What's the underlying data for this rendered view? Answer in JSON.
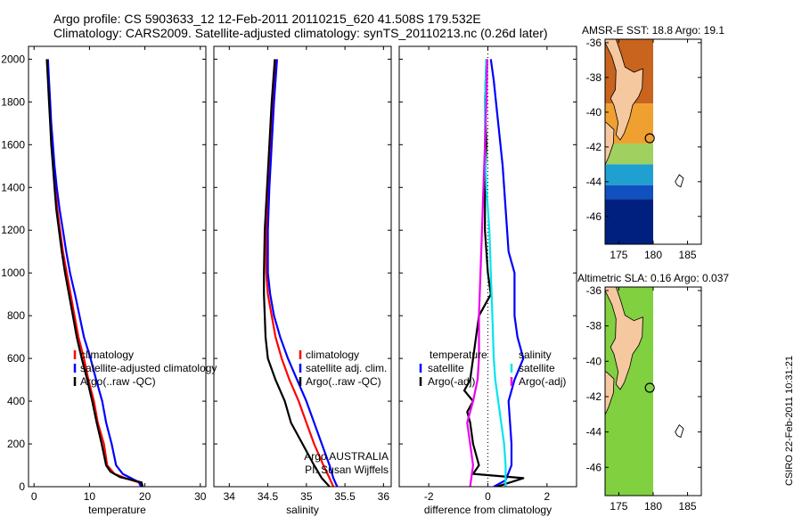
{
  "titles": {
    "line1": "Argo profile: CS 5903633_12 12-Feb-2011 20110215_620 41.508S 179.532E",
    "line2": "Climatology: CARS2009. Satellite-adjusted climatology: synTS_20110213.nc (0.26d later)",
    "sst_map": "AMSR-E SST: 18.8 Argo: 19.1",
    "sla_map": "Altimetric SLA: 0.16 Argo: 0.037"
  },
  "side_stamp": "CSIRO 22-Feb-2011 10:31:21",
  "annotation": {
    "line1": "Argo AUSTRALIA",
    "line2": "PI: Susan Wijffels"
  },
  "colors": {
    "climatology": "#ff0000",
    "satellite": "#0000ff",
    "argo": "#000000",
    "salinity_satellite": "#00e5ee",
    "salinity_argo": "#ee00ee",
    "land": "#f5c8a0"
  },
  "chart_data": [
    {
      "type": "line",
      "id": "temperature-profile",
      "xlabel": "temperature",
      "ylabel": "",
      "xlim": [
        -1,
        31
      ],
      "ylim": [
        2060,
        0
      ],
      "xticks": [
        0,
        10,
        20,
        30
      ],
      "yticks": [
        0,
        200,
        400,
        600,
        800,
        1000,
        1200,
        1400,
        1600,
        1800,
        2000
      ],
      "legend": {
        "placement": "lower-left",
        "entries": [
          "climatology",
          "satellite-adjusted climatology",
          "Argo(..raw -QC)"
        ]
      },
      "series": [
        {
          "name": "climatology",
          "color": "#ff0000",
          "points": [
            [
              19.3,
              0
            ],
            [
              18.9,
              20
            ],
            [
              16.5,
              40
            ],
            [
              14.5,
              60
            ],
            [
              13.2,
              100
            ],
            [
              12.6,
              200
            ],
            [
              11.5,
              300
            ],
            [
              10.8,
              400
            ],
            [
              9.8,
              500
            ],
            [
              9.0,
              600
            ],
            [
              8.0,
              700
            ],
            [
              7.3,
              800
            ],
            [
              6.6,
              900
            ],
            [
              5.9,
              1000
            ],
            [
              5.2,
              1100
            ],
            [
              4.7,
              1200
            ],
            [
              4.2,
              1300
            ],
            [
              3.8,
              1400
            ],
            [
              3.5,
              1500
            ],
            [
              3.2,
              1600
            ],
            [
              3.0,
              1700
            ],
            [
              2.8,
              1800
            ],
            [
              2.6,
              1900
            ],
            [
              2.4,
              2000
            ]
          ]
        },
        {
          "name": "satellite-adjusted climatology",
          "color": "#0000ff",
          "points": [
            [
              19.3,
              0
            ],
            [
              19.0,
              20
            ],
            [
              17.5,
              40
            ],
            [
              16.0,
              60
            ],
            [
              14.8,
              100
            ],
            [
              14.0,
              200
            ],
            [
              13.0,
              300
            ],
            [
              12.3,
              400
            ],
            [
              11.2,
              500
            ],
            [
              10.2,
              600
            ],
            [
              9.0,
              700
            ],
            [
              8.2,
              800
            ],
            [
              7.4,
              900
            ],
            [
              6.5,
              1000
            ],
            [
              5.8,
              1100
            ],
            [
              5.2,
              1200
            ],
            [
              4.6,
              1300
            ],
            [
              4.1,
              1400
            ],
            [
              3.7,
              1500
            ],
            [
              3.4,
              1600
            ],
            [
              3.1,
              1700
            ],
            [
              2.9,
              1800
            ],
            [
              2.7,
              1900
            ],
            [
              2.5,
              2000
            ]
          ]
        },
        {
          "name": "Argo(..raw -QC)",
          "color": "#000000",
          "points": [
            [
              19.6,
              0
            ],
            [
              19.4,
              20
            ],
            [
              15.5,
              45
            ],
            [
              13.8,
              70
            ],
            [
              13.0,
              100
            ],
            [
              12.2,
              200
            ],
            [
              11.3,
              300
            ],
            [
              10.5,
              400
            ],
            [
              9.6,
              500
            ],
            [
              8.6,
              600
            ],
            [
              7.7,
              700
            ],
            [
              7.0,
              800
            ],
            [
              6.3,
              900
            ],
            [
              5.6,
              1000
            ],
            [
              5.0,
              1100
            ],
            [
              4.5,
              1200
            ],
            [
              4.0,
              1300
            ],
            [
              3.7,
              1400
            ],
            [
              3.4,
              1500
            ],
            [
              3.1,
              1600
            ],
            [
              2.9,
              1700
            ],
            [
              2.7,
              1800
            ],
            [
              2.5,
              1900
            ],
            [
              2.3,
              2000
            ]
          ]
        }
      ]
    },
    {
      "type": "line",
      "id": "salinity-profile",
      "xlabel": "salinity",
      "ylabel": "",
      "xlim": [
        33.8,
        36.1
      ],
      "ylim": [
        2060,
        0
      ],
      "xticks": [
        34,
        34.5,
        35,
        35.5,
        36
      ],
      "yticks": [
        0,
        200,
        400,
        600,
        800,
        1000,
        1200,
        1400,
        1600,
        1800,
        2000
      ],
      "legend": {
        "placement": "lower-right",
        "entries": [
          "climatology",
          "satellite adj. clim.",
          "Argo(..raw -QC)"
        ]
      },
      "series": [
        {
          "name": "climatology",
          "color": "#ff0000",
          "points": [
            [
              35.35,
              0
            ],
            [
              35.3,
              40
            ],
            [
              35.22,
              100
            ],
            [
              35.1,
              200
            ],
            [
              35.0,
              300
            ],
            [
              34.9,
              400
            ],
            [
              34.78,
              500
            ],
            [
              34.68,
              600
            ],
            [
              34.6,
              700
            ],
            [
              34.55,
              800
            ],
            [
              34.5,
              900
            ],
            [
              34.48,
              1000
            ],
            [
              34.48,
              1200
            ],
            [
              34.5,
              1400
            ],
            [
              34.53,
              1600
            ],
            [
              34.56,
              1800
            ],
            [
              34.6,
              2000
            ]
          ]
        },
        {
          "name": "satellite adj. clim.",
          "color": "#0000ff",
          "points": [
            [
              35.4,
              0
            ],
            [
              35.35,
              40
            ],
            [
              35.3,
              100
            ],
            [
              35.2,
              200
            ],
            [
              35.1,
              300
            ],
            [
              35.0,
              400
            ],
            [
              34.88,
              500
            ],
            [
              34.76,
              600
            ],
            [
              34.66,
              700
            ],
            [
              34.58,
              800
            ],
            [
              34.53,
              900
            ],
            [
              34.5,
              1000
            ],
            [
              34.5,
              1200
            ],
            [
              34.52,
              1400
            ],
            [
              34.55,
              1600
            ],
            [
              34.58,
              1800
            ],
            [
              34.62,
              2000
            ]
          ]
        },
        {
          "name": "Argo(..raw -QC)",
          "color": "#000000",
          "points": [
            [
              35.3,
              0
            ],
            [
              35.2,
              40
            ],
            [
              35.1,
              100
            ],
            [
              34.95,
              200
            ],
            [
              34.8,
              300
            ],
            [
              34.72,
              400
            ],
            [
              34.6,
              500
            ],
            [
              34.5,
              600
            ],
            [
              34.47,
              700
            ],
            [
              34.46,
              800
            ],
            [
              34.45,
              900
            ],
            [
              34.45,
              1000
            ],
            [
              34.46,
              1200
            ],
            [
              34.49,
              1400
            ],
            [
              34.52,
              1600
            ],
            [
              34.55,
              1800
            ],
            [
              34.59,
              2000
            ]
          ]
        }
      ]
    },
    {
      "type": "line",
      "id": "difference-from-climatology",
      "xlabel": "difference from climatology",
      "ylabel": "",
      "xlim": [
        -3,
        3
      ],
      "ylim": [
        2060,
        0
      ],
      "xticks": [
        -2,
        0,
        2
      ],
      "yticks": [
        0,
        200,
        400,
        600,
        800,
        1000,
        1200,
        1400,
        1600,
        1800,
        2000
      ],
      "legend": {
        "placement": "lower-center",
        "groups": [
          {
            "title": "temperature",
            "entries": [
              "satellite",
              "Argo(-adj)"
            ]
          },
          {
            "title": "salinity",
            "entries": [
              "satellite",
              "Argo(-adj)"
            ]
          }
        ]
      },
      "series": [
        {
          "name": "satellite",
          "group": "temperature",
          "color": "#0000ff",
          "points": [
            [
              0.2,
              0
            ],
            [
              0.6,
              30
            ],
            [
              0.8,
              100
            ],
            [
              0.8,
              200
            ],
            [
              0.7,
              400
            ],
            [
              0.9,
              500
            ],
            [
              1.2,
              600
            ],
            [
              1.0,
              700
            ],
            [
              0.9,
              800
            ],
            [
              0.9,
              900
            ],
            [
              0.9,
              1000
            ],
            [
              0.7,
              1100
            ],
            [
              0.6,
              1300
            ],
            [
              0.5,
              1500
            ],
            [
              0.35,
              1700
            ],
            [
              0.2,
              1900
            ],
            [
              0.1,
              2000
            ]
          ]
        },
        {
          "name": "Argo(-adj)",
          "group": "temperature",
          "color": "#000000",
          "points": [
            [
              0.3,
              0
            ],
            [
              1.2,
              40
            ],
            [
              -0.5,
              60
            ],
            [
              -0.3,
              100
            ],
            [
              -0.5,
              200
            ],
            [
              -0.6,
              300
            ],
            [
              -0.7,
              350
            ],
            [
              -0.5,
              400
            ],
            [
              -0.8,
              450
            ],
            [
              -0.6,
              500
            ],
            [
              -0.5,
              600
            ],
            [
              -0.4,
              700
            ],
            [
              -0.3,
              800
            ],
            [
              0.1,
              900
            ],
            [
              0.0,
              1000
            ],
            [
              -0.1,
              1200
            ],
            [
              -0.1,
              1400
            ],
            [
              -0.05,
              1600
            ],
            [
              -0.1,
              1800
            ],
            [
              -0.05,
              2000
            ]
          ]
        },
        {
          "name": "satellite",
          "group": "salinity",
          "color": "#00e5ee",
          "points": [
            [
              0.6,
              0
            ],
            [
              0.6,
              100
            ],
            [
              0.55,
              200
            ],
            [
              0.45,
              300
            ],
            [
              0.35,
              400
            ],
            [
              0.25,
              500
            ],
            [
              0.2,
              600
            ],
            [
              0.15,
              800
            ],
            [
              0.1,
              1000
            ],
            [
              0.05,
              1200
            ],
            [
              -0.05,
              1400
            ],
            [
              -0.1,
              1600
            ],
            [
              -0.1,
              1800
            ],
            [
              -0.05,
              2000
            ]
          ]
        },
        {
          "name": "Argo(-adj)",
          "group": "salinity",
          "color": "#ee00ee",
          "points": [
            [
              -0.6,
              0
            ],
            [
              -0.5,
              100
            ],
            [
              -0.6,
              200
            ],
            [
              -0.7,
              300
            ],
            [
              -0.5,
              400
            ],
            [
              -0.35,
              500
            ],
            [
              -0.3,
              600
            ],
            [
              -0.3,
              800
            ],
            [
              -0.25,
              1000
            ],
            [
              -0.2,
              1200
            ],
            [
              -0.15,
              1400
            ],
            [
              -0.1,
              1600
            ],
            [
              -0.05,
              1800
            ],
            [
              -0.02,
              2000
            ]
          ]
        }
      ]
    },
    {
      "type": "heatmap",
      "id": "sst-map",
      "title": "AMSR-E SST: 18.8 Argo: 19.1",
      "xlim": [
        173,
        187
      ],
      "ylim": [
        -47.6,
        -35.8
      ],
      "xticks": [
        175,
        180,
        185
      ],
      "yticks": [
        -36,
        -38,
        -40,
        -42,
        -44,
        -46
      ],
      "marker": [
        179.5,
        -41.5
      ],
      "bands": [
        {
          "lat_from": -35.8,
          "lat_to": -39.5,
          "color": "#c8641e"
        },
        {
          "lat_from": -39.5,
          "lat_to": -41.8,
          "color": "#f0a030"
        },
        {
          "lat_from": -41.8,
          "lat_to": -43.0,
          "color": "#a0d060"
        },
        {
          "lat_from": -43.0,
          "lat_to": -44.2,
          "color": "#20a0d0"
        },
        {
          "lat_from": -44.2,
          "lat_to": -45.0,
          "color": "#1050c0"
        },
        {
          "lat_from": -45.0,
          "lat_to": -47.6,
          "color": "#002080"
        }
      ]
    },
    {
      "type": "heatmap",
      "id": "sla-map",
      "title": "Altimetric SLA: 0.16 Argo: 0.037",
      "xlim": [
        173,
        187
      ],
      "ylim": [
        -47.6,
        -35.8
      ],
      "xticks": [
        175,
        180,
        185
      ],
      "yticks": [
        -36,
        -38,
        -40,
        -42,
        -44,
        -46
      ],
      "marker": [
        179.5,
        -41.5
      ],
      "bands": [
        {
          "lat_from": -35.8,
          "lat_to": -47.6,
          "color": "#80d040"
        }
      ]
    }
  ]
}
